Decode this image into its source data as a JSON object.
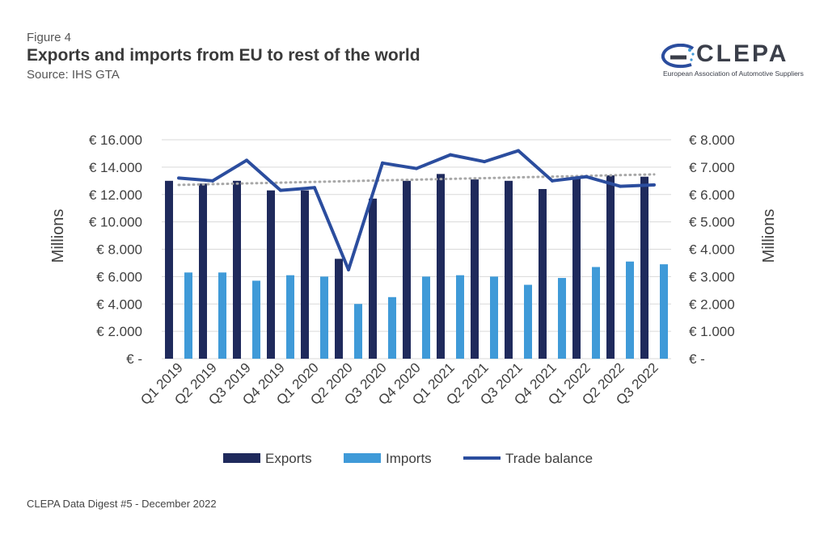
{
  "header": {
    "figure_label": "Figure 4",
    "title": "Exports and imports from EU to rest of the world",
    "source": "Source: IHS GTA"
  },
  "logo": {
    "wordmark": "CLEPA",
    "subtitle": "European Association of Automotive Suppliers"
  },
  "footer": {
    "text": "CLEPA Data Digest #5 - December 2022"
  },
  "chart_data": {
    "type": "bar",
    "categories": [
      "Q1 2019",
      "Q2 2019",
      "Q3 2019",
      "Q4 2019",
      "Q1 2020",
      "Q2 2020",
      "Q3 2020",
      "Q4 2020",
      "Q1 2021",
      "Q2 2021",
      "Q3 2021",
      "Q4 2021",
      "Q1 2022",
      "Q2 2022",
      "Q3 2022"
    ],
    "series": [
      {
        "name": "Exports",
        "axis": "left",
        "kind": "bar",
        "color": "#1f2a5c",
        "values": [
          13000,
          12800,
          13000,
          12300,
          12300,
          7300,
          11700,
          13000,
          13500,
          13100,
          13000,
          12400,
          13300,
          13400,
          13300
        ]
      },
      {
        "name": "Imports",
        "axis": "left",
        "kind": "bar",
        "color": "#3f9ad8",
        "values": [
          6300,
          6300,
          5700,
          6100,
          6000,
          4000,
          4500,
          6000,
          6100,
          6000,
          5400,
          5900,
          6700,
          7100,
          6900
        ]
      },
      {
        "name": "Trade balance",
        "axis": "right",
        "kind": "line",
        "color": "#2b4d9e",
        "values": [
          6600,
          6500,
          7250,
          6150,
          6250,
          3250,
          7150,
          6950,
          7450,
          7200,
          7600,
          6500,
          6650,
          6300,
          6350
        ]
      }
    ],
    "trendline": {
      "series": "Trade balance",
      "type": "linear",
      "style": "dotted",
      "color": "#a8a8a8"
    },
    "y_left": {
      "label": "Millions",
      "min": 0,
      "max": 16000,
      "ticks": [
        "€ -",
        "€ 2.000",
        "€ 4.000",
        "€ 6.000",
        "€ 8.000",
        "€ 10.000",
        "€ 12.000",
        "€ 14.000",
        "€ 16.000"
      ]
    },
    "y_right": {
      "label": "Millions",
      "min": 0,
      "max": 8000,
      "ticks": [
        "€ -",
        "€ 1.000",
        "€ 2.000",
        "€ 3.000",
        "€ 4.000",
        "€ 5.000",
        "€ 6.000",
        "€ 7.000",
        "€ 8.000"
      ]
    },
    "grid": true,
    "legend": {
      "placement": "bottom",
      "entries": [
        "Exports",
        "Imports",
        "Trade balance"
      ]
    }
  }
}
